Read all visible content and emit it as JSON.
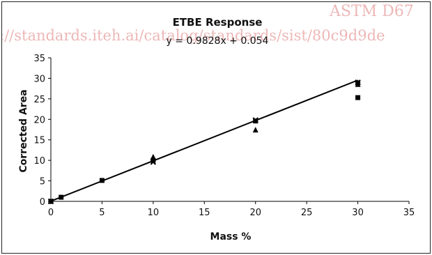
{
  "watermark": {
    "line1": "ASTM D67",
    "line2": "://standards.iteh.ai/catalog/standards/sist/80c9d9de"
  },
  "chart_data": {
    "type": "scatter",
    "title": "ETBE Response",
    "subtitle": "y = 0.9828x + 0.054",
    "xlabel": "Mass %",
    "ylabel": "Corrected Area",
    "xlim": [
      0,
      35
    ],
    "ylim": [
      0,
      35
    ],
    "xticks": [
      0,
      5,
      10,
      15,
      20,
      25,
      30,
      35
    ],
    "yticks": [
      0,
      5,
      10,
      15,
      20,
      25,
      30,
      35
    ],
    "grid": false,
    "legend": "none",
    "trendline": {
      "slope": 0.9828,
      "intercept": 0.054,
      "x_range": [
        0,
        30
      ]
    },
    "series": [
      {
        "marker": "square",
        "x": [
          0,
          1,
          5,
          10,
          20,
          30,
          30
        ],
        "y": [
          0,
          1.0,
          5.1,
          10.0,
          19.6,
          28.9,
          25.3
        ]
      },
      {
        "marker": "triangle",
        "x": [
          0,
          10,
          20,
          30
        ],
        "y": [
          0,
          10.8,
          17.4,
          28.5
        ]
      },
      {
        "marker": "x",
        "x": [
          0,
          10,
          20,
          30
        ],
        "y": [
          0,
          9.6,
          19.8,
          29.0
        ]
      }
    ],
    "colors": {
      "marker": "#000000",
      "line": "#000000"
    }
  }
}
